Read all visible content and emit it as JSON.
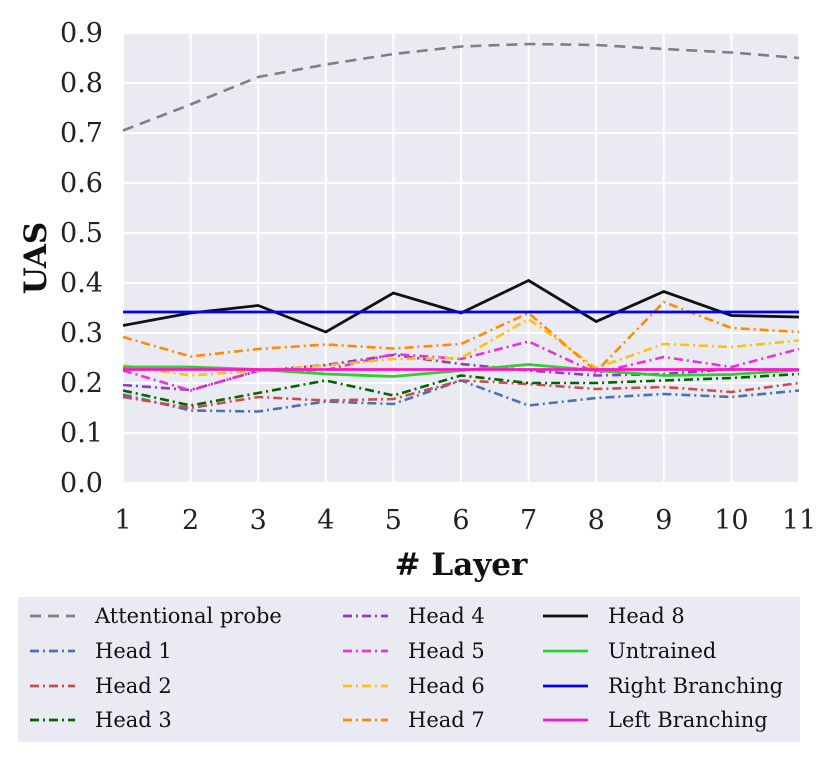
{
  "chart_data": {
    "type": "line",
    "title": "",
    "xlabel": "# Layer",
    "ylabel": "UAS",
    "xlim": [
      1,
      11
    ],
    "ylim": [
      0.0,
      0.9
    ],
    "x": [
      1,
      2,
      3,
      4,
      5,
      6,
      7,
      8,
      9,
      10,
      11
    ],
    "x_ticks": [
      "1",
      "2",
      "3",
      "4",
      "5",
      "6",
      "7",
      "8",
      "9",
      "10",
      "11"
    ],
    "y_ticks": [
      "0.0",
      "0.1",
      "0.2",
      "0.3",
      "0.4",
      "0.5",
      "0.6",
      "0.7",
      "0.8",
      "0.9"
    ],
    "grid": true,
    "legend_position": "bottom",
    "series": [
      {
        "name": "Attentional probe",
        "color": "#808080",
        "style": "dashed",
        "values": [
          0.705,
          0.757,
          0.812,
          0.837,
          0.858,
          0.873,
          0.878,
          0.876,
          0.868,
          0.861,
          0.85
        ]
      },
      {
        "name": "Head 1",
        "color": "#4c72b0",
        "style": "dashdot",
        "values": [
          0.177,
          0.145,
          0.143,
          0.163,
          0.158,
          0.205,
          0.155,
          0.17,
          0.178,
          0.172,
          0.185
        ]
      },
      {
        "name": "Head 2",
        "color": "#c44e52",
        "style": "dashdot",
        "values": [
          0.172,
          0.15,
          0.172,
          0.165,
          0.168,
          0.205,
          0.198,
          0.188,
          0.192,
          0.182,
          0.2
        ]
      },
      {
        "name": "Head 3",
        "color": "#006400",
        "style": "dashdot",
        "values": [
          0.185,
          0.155,
          0.18,
          0.205,
          0.175,
          0.215,
          0.2,
          0.2,
          0.205,
          0.21,
          0.218
        ]
      },
      {
        "name": "Head 4",
        "color": "#8b3fc4",
        "style": "dashdot",
        "values": [
          0.196,
          0.186,
          0.224,
          0.236,
          0.256,
          0.238,
          0.225,
          0.215,
          0.218,
          0.228,
          0.225
        ]
      },
      {
        "name": "Head 5",
        "color": "#ee30d8",
        "style": "dashdot",
        "values": [
          0.225,
          0.185,
          0.225,
          0.226,
          0.258,
          0.248,
          0.283,
          0.22,
          0.252,
          0.232,
          0.268
        ]
      },
      {
        "name": "Head 6",
        "color": "#ffc20e",
        "style": "dashdot",
        "values": [
          0.235,
          0.215,
          0.225,
          0.235,
          0.248,
          0.25,
          0.328,
          0.23,
          0.278,
          0.272,
          0.285
        ]
      },
      {
        "name": "Head 7",
        "color": "#ff8c00",
        "style": "dashdot",
        "values": [
          0.292,
          0.253,
          0.268,
          0.277,
          0.269,
          0.278,
          0.34,
          0.223,
          0.362,
          0.31,
          0.302
        ]
      },
      {
        "name": "Head 8",
        "color": "#111111",
        "style": "solid",
        "values": [
          0.315,
          0.34,
          0.355,
          0.302,
          0.38,
          0.34,
          0.405,
          0.323,
          0.383,
          0.335,
          0.332
        ]
      },
      {
        "name": "Untrained",
        "color": "#32cd32",
        "style": "solid",
        "values": [
          0.232,
          0.232,
          0.227,
          0.218,
          0.213,
          0.225,
          0.237,
          0.225,
          0.215,
          0.217,
          0.226
        ]
      },
      {
        "name": "Right Branching",
        "color": "#0000ff",
        "style": "solid",
        "values": [
          0.342,
          0.342,
          0.342,
          0.342,
          0.342,
          0.342,
          0.342,
          0.342,
          0.342,
          0.342,
          0.342
        ]
      },
      {
        "name": "Left Branching",
        "color": "#ff14c8",
        "style": "solid",
        "values": [
          0.227,
          0.227,
          0.227,
          0.227,
          0.227,
          0.227,
          0.227,
          0.227,
          0.227,
          0.227,
          0.227
        ]
      }
    ]
  }
}
